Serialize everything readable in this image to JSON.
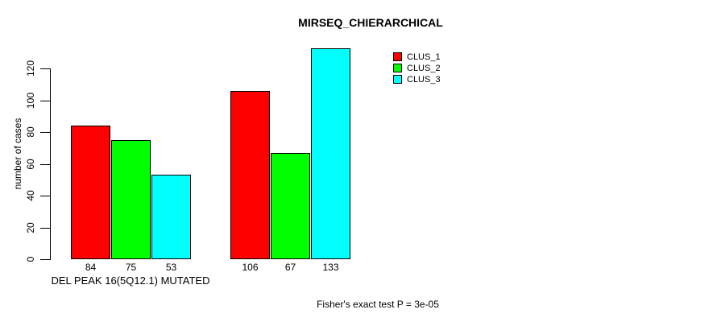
{
  "chart_data": {
    "type": "bar",
    "title": "MIRSEQ_CHIERARCHICAL",
    "ylabel": "number of cases",
    "xlabel": "DEL PEAK 16(5Q12.1) MUTATED",
    "categories": [
      "DEL PEAK 16(5Q12.1) MUTATED",
      ""
    ],
    "series": [
      {
        "name": "CLUS_1",
        "color": "#FF0000",
        "values": [
          84,
          106
        ]
      },
      {
        "name": "CLUS_2",
        "color": "#00FF00",
        "values": [
          75,
          67
        ]
      },
      {
        "name": "CLUS_3",
        "color": "#00FFFF",
        "values": [
          53,
          133
        ]
      }
    ],
    "yticks": [
      0,
      20,
      40,
      60,
      80,
      100,
      120
    ],
    "ylim": [
      0,
      137
    ],
    "grid": false,
    "legend_position": "top-right",
    "legend_entries": [
      "CLUS_1",
      "CLUS_2",
      "CLUS_3"
    ],
    "bar_value_labels_shown": true,
    "annotation": "Fisher's exact test P = 3e-05"
  }
}
